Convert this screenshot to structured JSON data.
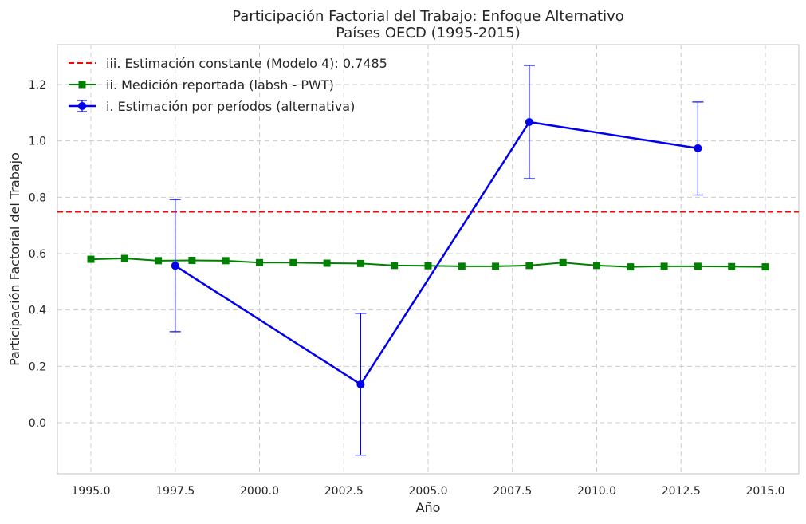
{
  "chart_data": {
    "type": "line",
    "title": "Participación Factorial del Trabajo: Enfoque Alternativo",
    "subtitle": "Países OECD (1995-2015)",
    "xlabel": "Año",
    "ylabel": "Participación Factorial del Trabajo",
    "xlim": [
      1994.0,
      1996.0
    ],
    "ylim": [
      -0.185,
      1.34
    ],
    "xticks": [
      1995.0,
      1997.5,
      2000.0,
      2002.5,
      2005.0,
      2007.5,
      2010.0,
      2012.5,
      2015.0
    ],
    "xtick_labels": [
      "1995.0",
      "1997.5",
      "2000.0",
      "2002.5",
      "2005.0",
      "2007.5",
      "2010.0",
      "2012.5",
      "2015.0"
    ],
    "yticks": [
      0.0,
      0.2,
      0.4,
      0.6,
      0.8,
      1.0,
      1.2
    ],
    "ytick_labels": [
      "0.0",
      "0.2",
      "0.4",
      "0.6",
      "0.8",
      "1.0",
      "1.2"
    ],
    "grid": true,
    "legend_position": "top-left",
    "colors": {
      "constant": "#ff0000",
      "reported": "#008000",
      "periods": "#0000ee"
    },
    "constant": {
      "name": "iii. Estimación constante (Modelo 4): 0.7485",
      "value": 0.7485
    },
    "reported": {
      "name": "ii. Medición reportada (labsh - PWT)",
      "x": [
        1995,
        1996,
        1997,
        1998,
        1999,
        2000,
        2001,
        2002,
        2003,
        2004,
        2005,
        2006,
        2007,
        2008,
        2009,
        2010,
        2011,
        2012,
        2013,
        2014,
        2015
      ],
      "y": [
        0.58,
        0.583,
        0.575,
        0.576,
        0.575,
        0.568,
        0.568,
        0.566,
        0.565,
        0.558,
        0.557,
        0.555,
        0.555,
        0.558,
        0.568,
        0.558,
        0.553,
        0.555,
        0.555,
        0.554,
        0.553
      ]
    },
    "periods": {
      "name": "i. Estimación por períodos (alternativa)",
      "x": [
        1997.5,
        2003.0,
        2008.0,
        2013.0
      ],
      "y": [
        0.557,
        0.136,
        1.067,
        0.974
      ],
      "err_low": [
        0.323,
        -0.115,
        0.866,
        0.808
      ],
      "err_high": [
        0.792,
        0.388,
        1.268,
        1.138
      ]
    }
  }
}
